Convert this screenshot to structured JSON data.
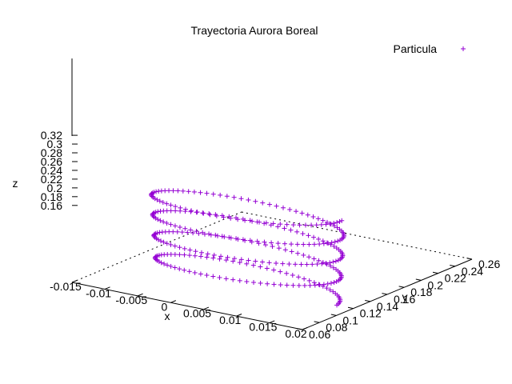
{
  "chart_data": {
    "type": "scatter",
    "title": "Trayectoria Aurora Boreal",
    "xlabel": "x",
    "ylabel": "y",
    "zlabel": "z",
    "legend": {
      "label": "Particula",
      "placement": "top-right"
    },
    "marker": "+",
    "color": "#9400d3",
    "xlim": [
      -0.015,
      0.02
    ],
    "ylim": [
      0.06,
      0.26
    ],
    "zlim": [
      0.16,
      0.32
    ],
    "xticks": [
      "-0.015",
      "-0.01",
      "-0.005",
      "0",
      "0.005",
      "0.01",
      "0.015",
      "0.02"
    ],
    "yticks": [
      "0.06",
      "0.08",
      "0.1",
      "0.12",
      "0.14",
      "0.16",
      "0.18",
      "0.2",
      "0.22",
      "0.24",
      "0.26"
    ],
    "zticks": [
      "0.16",
      "0.18",
      "0.2",
      "0.22",
      "0.24",
      "0.26",
      "0.28",
      "0.3",
      "0.32"
    ],
    "series": [
      {
        "name": "Particula",
        "helix": {
          "x_center": 0.004,
          "y_center": 0.12,
          "radius_start": 0.009,
          "radius_end": 0.0095,
          "z_start": 0.145,
          "z_end": 0.34,
          "turns": 4.0,
          "points": 340
        }
      }
    ]
  }
}
